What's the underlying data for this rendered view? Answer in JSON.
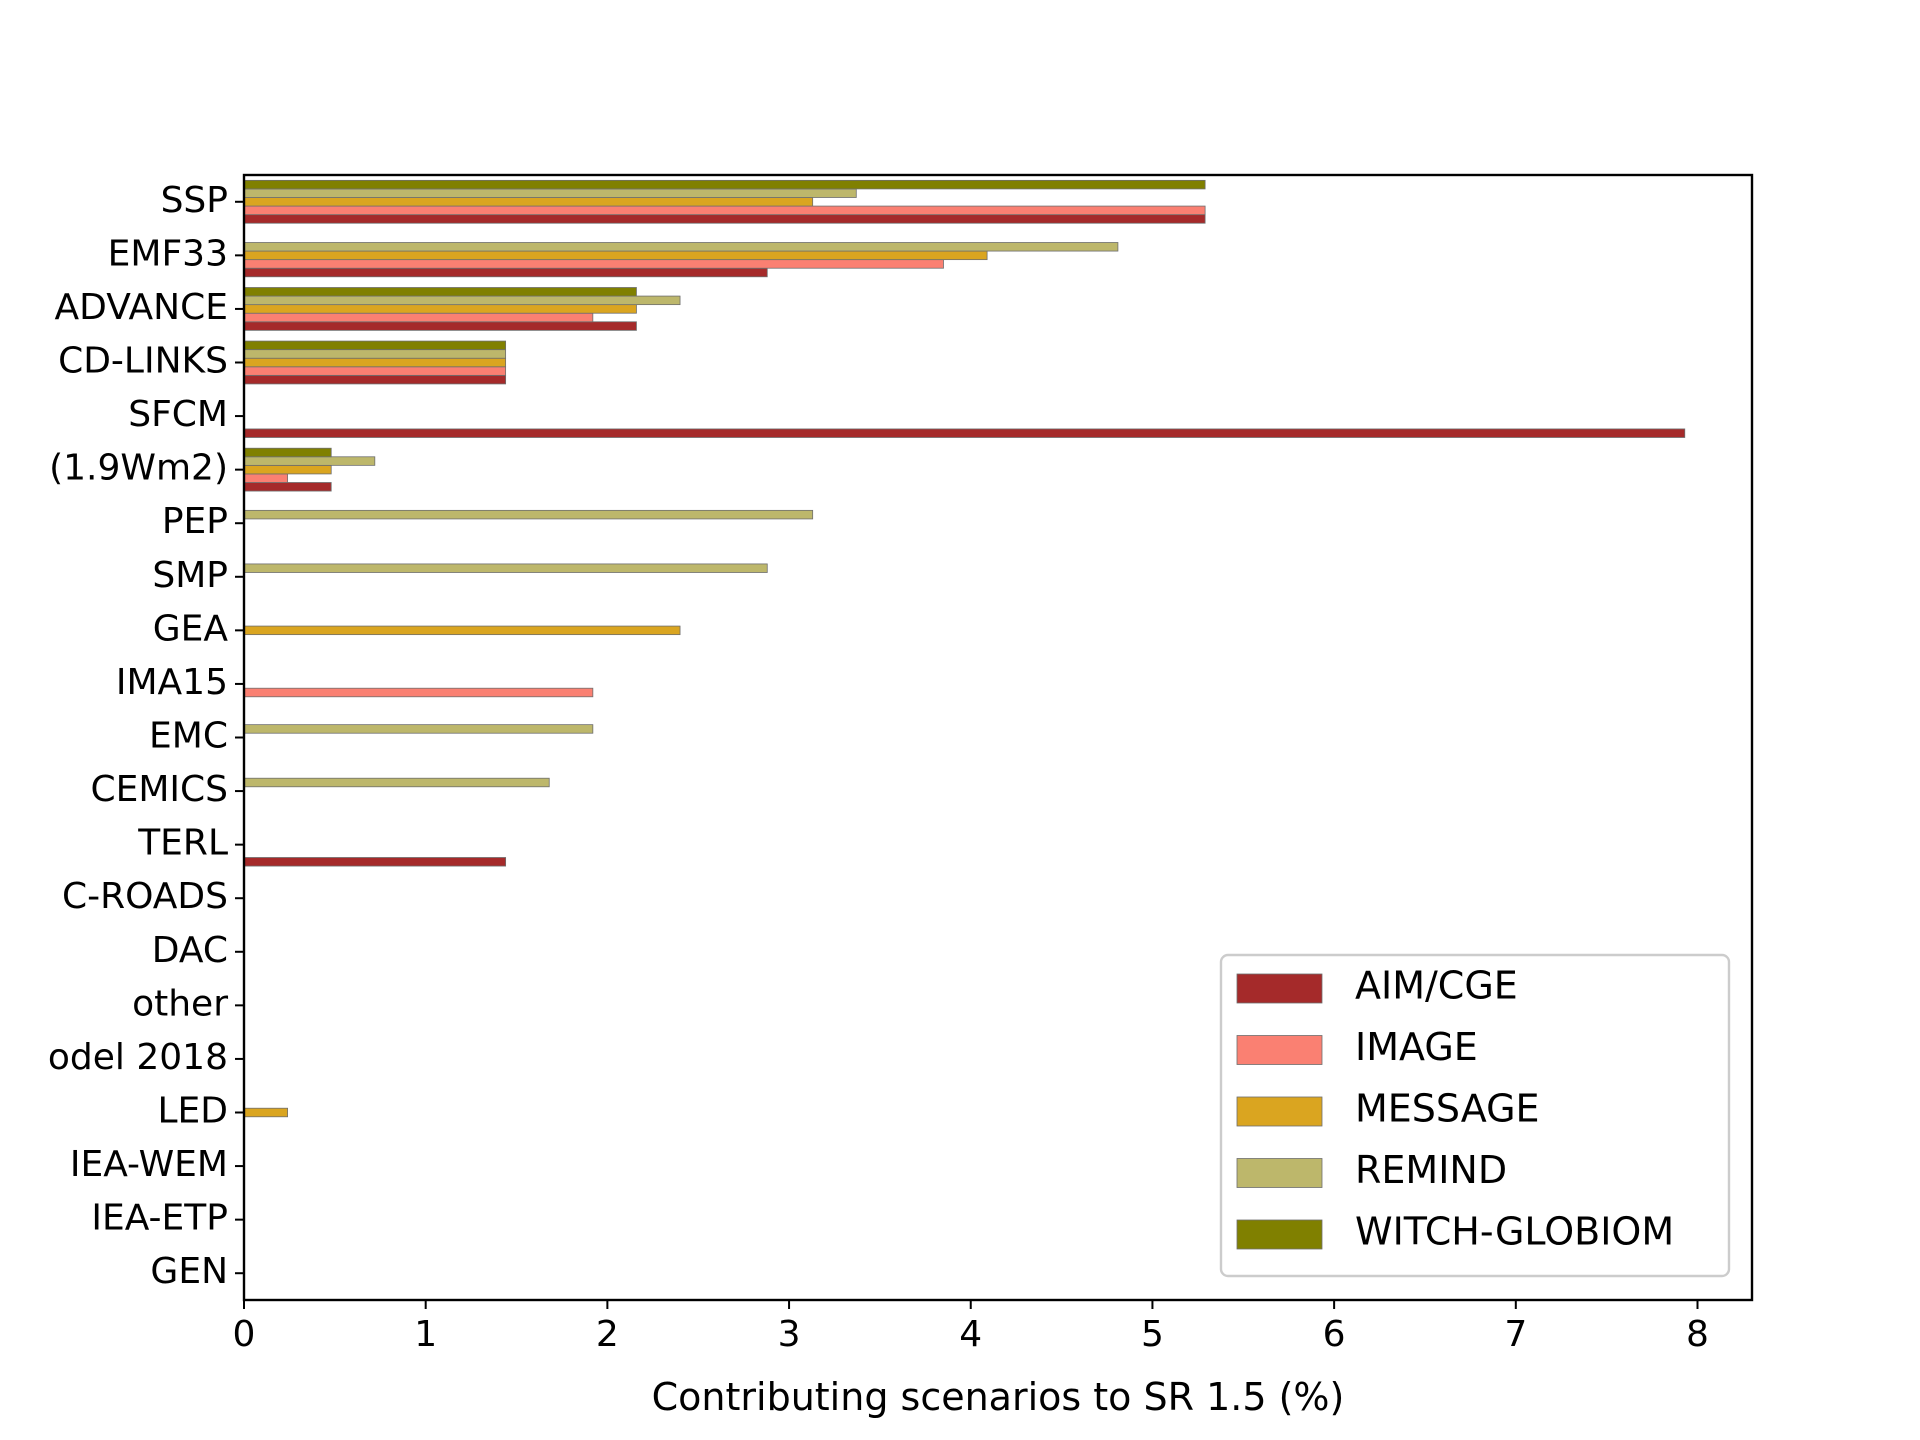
{
  "chart_data": {
    "type": "bar",
    "orientation": "horizontal",
    "title": "",
    "xlabel": "Contributing scenarios to SR 1.5 (%)",
    "ylabel": "",
    "xlim": [
      0,
      8.3
    ],
    "xticks": [
      0,
      1,
      2,
      3,
      4,
      5,
      6,
      7,
      8
    ],
    "grid": false,
    "legend_position": "bottom-right",
    "categories": [
      "SSP",
      "EMF33",
      "ADVANCE",
      "CD-LINKS",
      "SFCM",
      "(1.9Wm2)",
      "PEP",
      "SMP",
      "GEA",
      "IMA15",
      "EMC",
      "CEMICS",
      "TERL",
      "C-ROADS",
      "DAC",
      "other",
      "odel 2018",
      "LED",
      "IEA-WEM",
      "IEA-ETP",
      "GEN"
    ],
    "series": [
      {
        "name": "AIM/CGE",
        "color": "#a52a2a",
        "values": [
          5.29,
          2.88,
          2.16,
          1.44,
          7.93,
          0.48,
          0,
          0,
          0,
          0,
          0,
          0,
          1.44,
          0,
          0,
          0,
          0,
          0,
          0,
          0,
          0
        ]
      },
      {
        "name": "IMAGE",
        "color": "#fa8072",
        "values": [
          5.29,
          3.85,
          1.92,
          1.44,
          0,
          0.24,
          0,
          0,
          0,
          1.92,
          0,
          0,
          0,
          0,
          0,
          0,
          0,
          0,
          0,
          0,
          0
        ]
      },
      {
        "name": "MESSAGE",
        "color": "#daa520",
        "values": [
          3.13,
          4.09,
          2.16,
          1.44,
          0,
          0.48,
          0,
          0,
          2.4,
          0,
          0,
          0,
          0,
          0,
          0,
          0,
          0,
          0.24,
          0,
          0,
          0
        ]
      },
      {
        "name": "REMIND",
        "color": "#bdb76b",
        "values": [
          3.37,
          4.81,
          2.4,
          1.44,
          0,
          0.72,
          3.13,
          2.88,
          0,
          0,
          1.92,
          1.68,
          0,
          0,
          0,
          0,
          0,
          0,
          0,
          0,
          0
        ]
      },
      {
        "name": "WITCH-GLOBIOM",
        "color": "#808000",
        "values": [
          5.29,
          0,
          2.16,
          1.44,
          0,
          0.48,
          0,
          0,
          0,
          0,
          0,
          0,
          0,
          0,
          0,
          0,
          0,
          0,
          0,
          0,
          0
        ]
      }
    ]
  }
}
